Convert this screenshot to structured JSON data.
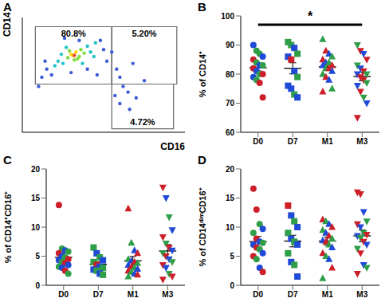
{
  "chart_data": [
    {
      "type": "scatter",
      "title": "A",
      "x_label": "CD16",
      "y_label": "CD14",
      "xlim": [
        0,
        100
      ],
      "ylim": [
        0,
        100
      ],
      "tick_labels": false,
      "x": [
        30,
        33,
        35,
        28,
        32,
        36,
        38,
        31,
        34,
        29,
        25,
        40,
        42,
        22,
        27,
        44,
        37,
        24,
        45,
        20,
        15,
        18,
        50,
        48,
        12,
        55,
        52,
        30,
        40,
        58,
        60,
        62,
        65,
        60,
        66,
        70,
        57,
        10,
        46,
        35,
        26,
        14,
        68,
        75,
        32
      ],
      "y": [
        68,
        70,
        66,
        65,
        63,
        72,
        69,
        67,
        64,
        71,
        60,
        75,
        70,
        62,
        74,
        66,
        60,
        68,
        78,
        58,
        55,
        50,
        72,
        80,
        48,
        70,
        62,
        52,
        55,
        55,
        48,
        40,
        35,
        25,
        20,
        30,
        32,
        40,
        50,
        80,
        82,
        62,
        60,
        45,
        67
      ],
      "colors": [
        "#ffd400",
        "#ffd400",
        "#7fdc3a",
        "#7fdc3a",
        "#7fdc3a",
        "#7fdc3a",
        "#7fdc3a",
        "#ffd400",
        "#7fdc3a",
        "#7fdc3a",
        "#22c3c8",
        "#22c3c8",
        "#22c3c8",
        "#22c3c8",
        "#22c3c8",
        "#22c3c8",
        "#22c3c8",
        "#22c3c8",
        "#22c3c8",
        "#22c3c8",
        "#3d5cd6",
        "#3d5cd6",
        "#3d5cd6",
        "#3d5cd6",
        "#3d5cd6",
        "#3d5cd6",
        "#3d5cd6",
        "#3d5cd6",
        "#3d5cd6",
        "#3d5cd6",
        "#3d5cd6",
        "#3d5cd6",
        "#3d5cd6",
        "#3d5cd6",
        "#3d5cd6",
        "#3d5cd6",
        "#3d5cd6",
        "#3d5cd6",
        "#3d5cd6",
        "#3d5cd6",
        "#3d5cd6",
        "#3d5cd6",
        "#3d5cd6",
        "#3d5cd6",
        "#e8452c"
      ],
      "gates": [
        {
          "x": [
            8,
            55
          ],
          "y": [
            42,
            92
          ],
          "value": 80.8,
          "label": "80.8%"
        },
        {
          "x": [
            55,
            95
          ],
          "y": [
            42,
            92
          ],
          "value": 5.2,
          "label": "5.20%"
        },
        {
          "x": [
            55,
            93
          ],
          "y": [
            3,
            42
          ],
          "value": 4.72,
          "label": "4.72%"
        }
      ]
    },
    {
      "type": "dot",
      "title": "B",
      "y_label": "% of CD14⁺",
      "categories": [
        "D0",
        "D7",
        "M1",
        "M3"
      ],
      "ylim": [
        60,
        100
      ],
      "yticks": [
        60,
        70,
        80,
        90,
        100
      ],
      "groups": [
        {
          "marker": "circle",
          "values": [
            90,
            88,
            87,
            86,
            85,
            84,
            83,
            83,
            82,
            81,
            80,
            80,
            79,
            78,
            77,
            72
          ],
          "colors": [
            "#1f49d6",
            "#2e9e48",
            "#2e9e48",
            "#1f49d6",
            "#cc1f2a",
            "#2e9e48",
            "#1f49d6",
            "#2e9e48",
            "#cc1f2a",
            "#1f49d6",
            "#2e9e48",
            "#cc1f2a",
            "#1f49d6",
            "#2e9e48",
            "#cc1f2a",
            "#cc1f2a"
          ],
          "mean": 82.2,
          "sem": 1.1
        },
        {
          "marker": "square",
          "values": [
            91,
            90,
            89,
            87,
            86,
            85,
            81,
            79,
            76,
            75,
            73,
            72
          ],
          "colors": [
            "#2e9e48",
            "#2e9e48",
            "#1f49d6",
            "#2e9e48",
            "#1f49d6",
            "#cc1f2a",
            "#1f49d6",
            "#2e9e48",
            "#1f49d6",
            "#1f49d6",
            "#2e9e48",
            "#1f49d6"
          ],
          "mean": 82.0,
          "sem": 1.9
        },
        {
          "marker": "triangle",
          "values": [
            92,
            88,
            87,
            86,
            85,
            84,
            84,
            83,
            83,
            82,
            82,
            81,
            80,
            79,
            78,
            75,
            74
          ],
          "colors": [
            "#2e9e48",
            "#cc1f2a",
            "#1f49d6",
            "#2e9e48",
            "#cc1f2a",
            "#1f49d6",
            "#2e9e48",
            "#cc1f2a",
            "#1f49d6",
            "#2e9e48",
            "#cc1f2a",
            "#1f49d6",
            "#2e9e48",
            "#cc1f2a",
            "#1f49d6",
            "#2e9e48",
            "#cc1f2a"
          ],
          "mean": 82.5,
          "sem": 1.1
        },
        {
          "marker": "triangle-down",
          "values": [
            90,
            88,
            87,
            85,
            83,
            82,
            81,
            80,
            80,
            79,
            78,
            77,
            76,
            74,
            72,
            70,
            65
          ],
          "colors": [
            "#2e9e48",
            "#cc1f2a",
            "#1f49d6",
            "#cc1f2a",
            "#2e9e48",
            "#1f49d6",
            "#cc1f2a",
            "#2e9e48",
            "#1f49d6",
            "#cc1f2a",
            "#cc1f2a",
            "#2e9e48",
            "#1f49d6",
            "#cc1f2a",
            "#2e9e48",
            "#1f49d6",
            "#cc1f2a"
          ],
          "mean": 79.2,
          "sem": 1.5
        }
      ],
      "annotations": [
        {
          "text": "*",
          "from": "D0",
          "to": "M3",
          "y": 97
        }
      ]
    },
    {
      "type": "dot",
      "title": "C",
      "y_label": "% of CD14⁺CD16⁺",
      "categories": [
        "D0",
        "D7",
        "M1",
        "M3"
      ],
      "ylim": [
        0,
        20
      ],
      "yticks": [
        0,
        5,
        10,
        15,
        20
      ],
      "groups": [
        {
          "marker": "circle",
          "values": [
            13.8,
            6.3,
            6,
            5.8,
            5.5,
            5,
            4.8,
            4.5,
            4.3,
            4,
            3.8,
            3.5,
            3.2,
            3,
            2.5,
            2
          ],
          "colors": [
            "#cc1f2a",
            "#2e9e48",
            "#1f49d6",
            "#2e9e48",
            "#cc1f2a",
            "#1f49d6",
            "#2e9e48",
            "#cc1f2a",
            "#1f49d6",
            "#2e9e48",
            "#cc1f2a",
            "#1f49d6",
            "#2e9e48",
            "#1f49d6",
            "#cc1f2a",
            "#2e9e48"
          ],
          "mean": 4.8,
          "sem": 0.7
        },
        {
          "marker": "square",
          "values": [
            6.5,
            5.5,
            4.8,
            4.3,
            4,
            3.5,
            3.2,
            3,
            2.7,
            2.5,
            2,
            1.8
          ],
          "colors": [
            "#2e9e48",
            "#1f49d6",
            "#2e9e48",
            "#1f49d6",
            "#2e9e48",
            "#cc1f2a",
            "#1f49d6",
            "#2e9e48",
            "#1f49d6",
            "#2e9e48",
            "#1f49d6",
            "#2e9e48"
          ],
          "mean": 3.6,
          "sem": 0.45
        },
        {
          "marker": "triangle",
          "values": [
            13.2,
            7.3,
            6,
            5.5,
            4.5,
            4.2,
            4,
            3.8,
            3.5,
            3.2,
            3,
            2.8,
            2.5,
            2.3,
            2,
            1.8,
            1.5
          ],
          "colors": [
            "#cc1f2a",
            "#2e9e48",
            "#1f49d6",
            "#cc1f2a",
            "#2e9e48",
            "#1f49d6",
            "#cc1f2a",
            "#2e9e48",
            "#1f49d6",
            "#cc1f2a",
            "#2e9e48",
            "#1f49d6",
            "#cc1f2a",
            "#2e9e48",
            "#1f49d6",
            "#cc1f2a",
            "#2e9e48"
          ],
          "mean": 4.2,
          "sem": 0.75
        },
        {
          "marker": "triangle-down",
          "values": [
            16.8,
            15,
            11.7,
            9.5,
            8.3,
            7.2,
            6.5,
            6,
            5.5,
            5,
            4.5,
            4,
            3.5,
            3,
            2,
            1.5,
            1
          ],
          "colors": [
            "#cc1f2a",
            "#1f49d6",
            "#2e9e48",
            "#1f49d6",
            "#cc1f2a",
            "#2e9e48",
            "#cc1f2a",
            "#1f49d6",
            "#2e9e48",
            "#cc1f2a",
            "#1f49d6",
            "#2e9e48",
            "#cc1f2a",
            "#1f49d6",
            "#2e9e48",
            "#cc1f2a",
            "#cc1f2a"
          ],
          "mean": 5.9,
          "sem": 1.1
        }
      ]
    },
    {
      "type": "dot",
      "title": "D",
      "y_label": "% of CD14ᵈⁱᵐCD16⁺",
      "categories": [
        "D0",
        "D7",
        "M1",
        "M3"
      ],
      "ylim": [
        0,
        20
      ],
      "yticks": [
        0,
        5,
        10,
        15,
        20
      ],
      "groups": [
        {
          "marker": "circle",
          "values": [
            16.6,
            13,
            10.5,
            9.7,
            9,
            8,
            7.5,
            7.3,
            7,
            6.5,
            6.2,
            5.5,
            5,
            4.5,
            3,
            2.3
          ],
          "colors": [
            "#cc1f2a",
            "#cc1f2a",
            "#2e9e48",
            "#1f49d6",
            "#2e9e48",
            "#cc1f2a",
            "#1f49d6",
            "#2e9e48",
            "#1f49d6",
            "#cc1f2a",
            "#2e9e48",
            "#1f49d6",
            "#cc1f2a",
            "#2e9e48",
            "#1f49d6",
            "#cc1f2a"
          ],
          "mean": 7.5,
          "sem": 0.9
        },
        {
          "marker": "square",
          "values": [
            13.7,
            12,
            11,
            10,
            9,
            8,
            7.5,
            7,
            5.5,
            4,
            3.5,
            1.5
          ],
          "colors": [
            "#cc1f2a",
            "#1f49d6",
            "#2e9e48",
            "#1f49d6",
            "#2e9e48",
            "#1f49d6",
            "#2e9e48",
            "#1f49d6",
            "#2e9e48",
            "#1f49d6",
            "#2e9e48",
            "#1f49d6"
          ],
          "mean": 7.6,
          "sem": 1.0
        },
        {
          "marker": "triangle",
          "values": [
            11.3,
            11,
            10.5,
            10,
            9.5,
            9,
            8.5,
            8,
            7.7,
            7.5,
            7,
            6.5,
            5.5,
            5,
            4.5,
            3,
            1.2
          ],
          "colors": [
            "#cc1f2a",
            "#2e9e48",
            "#1f49d6",
            "#cc1f2a",
            "#2e9e48",
            "#1f49d6",
            "#cc1f2a",
            "#2e9e48",
            "#1f49d6",
            "#cc1f2a",
            "#2e9e48",
            "#1f49d6",
            "#cc1f2a",
            "#2e9e48",
            "#1f49d6",
            "#cc1f2a",
            "#2e9e48"
          ],
          "mean": 7.6,
          "sem": 0.7
        },
        {
          "marker": "triangle-down",
          "values": [
            16,
            15.7,
            12.6,
            11,
            10.5,
            10,
            9,
            8.7,
            8.5,
            8.2,
            7.5,
            7,
            6.3,
            5.5,
            3.5,
            3,
            2
          ],
          "colors": [
            "#cc1f2a",
            "#cc1f2a",
            "#1f49d6",
            "#2e9e48",
            "#cc1f2a",
            "#1f49d6",
            "#2e9e48",
            "#cc1f2a",
            "#1f49d6",
            "#2e9e48",
            "#cc1f2a",
            "#1f49d6",
            "#2e9e48",
            "#cc1f2a",
            "#1f49d6",
            "#2e9e48",
            "#cc1f2a"
          ],
          "mean": 8.5,
          "sem": 1.0
        }
      ]
    }
  ]
}
